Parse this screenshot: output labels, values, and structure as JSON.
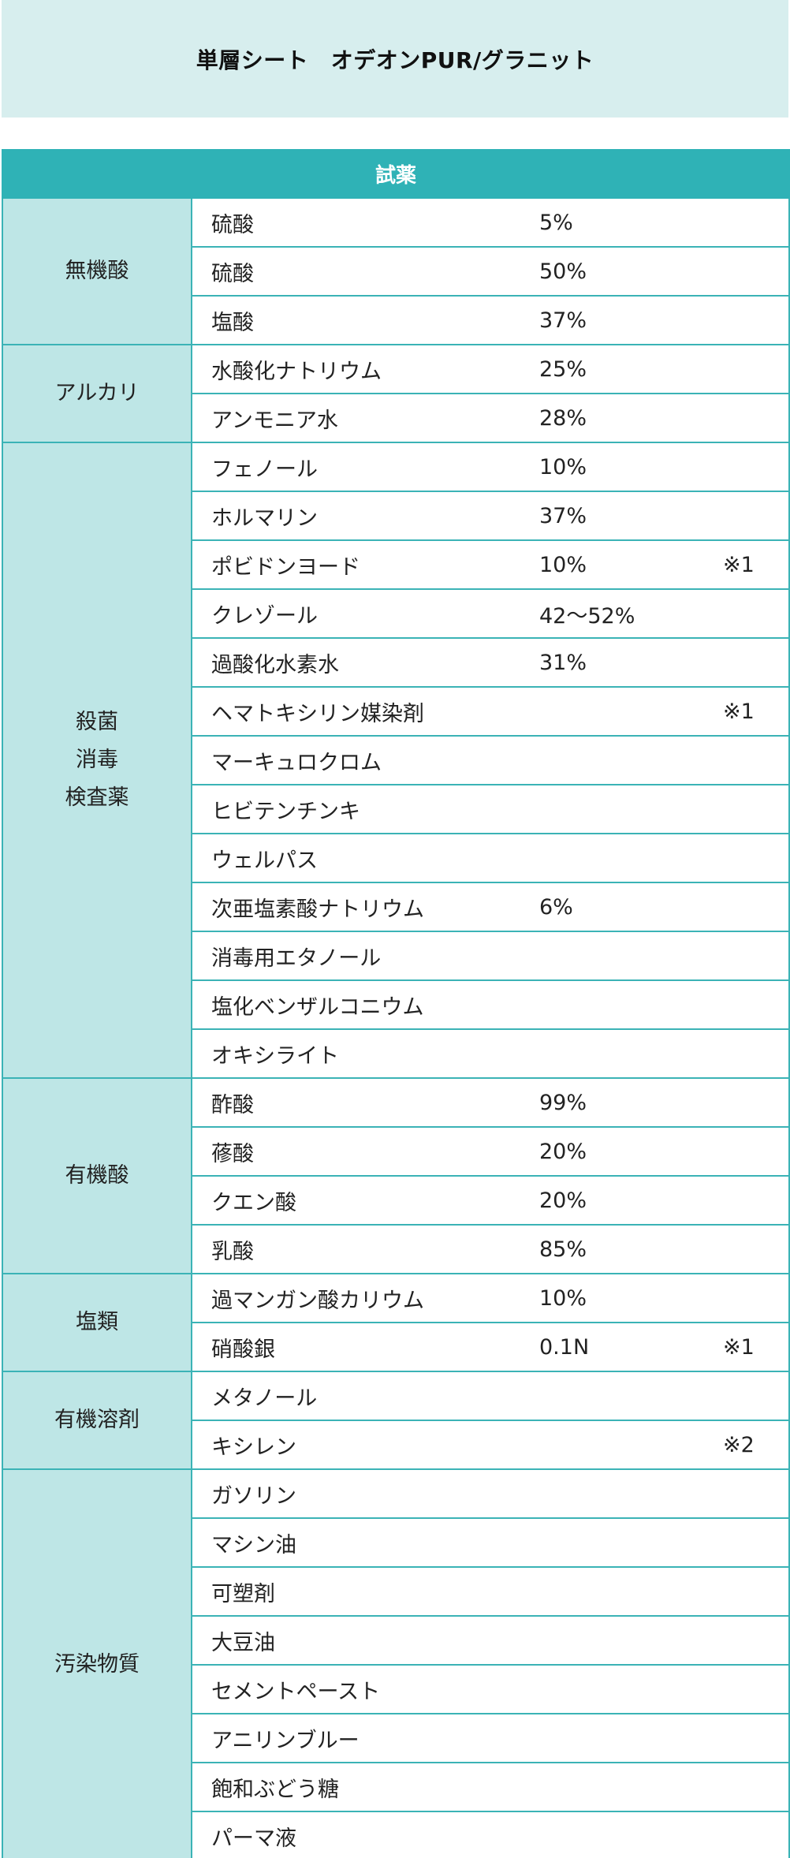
{
  "title": "単層シート　オデオンPUR/グラニット",
  "table_header": "試薬",
  "categories": [
    {
      "lines": [
        "無機酸"
      ],
      "rows": [
        {
          "name": "硫酸",
          "conc": "5%",
          "note": ""
        },
        {
          "name": "硫酸",
          "conc": "50%",
          "note": ""
        },
        {
          "name": "塩酸",
          "conc": "37%",
          "note": ""
        }
      ]
    },
    {
      "lines": [
        "アルカリ"
      ],
      "rows": [
        {
          "name": "水酸化ナトリウム",
          "conc": "25%",
          "note": ""
        },
        {
          "name": "アンモニア水",
          "conc": "28%",
          "note": ""
        }
      ]
    },
    {
      "lines": [
        "殺菌",
        "消毒",
        "検査薬"
      ],
      "rows": [
        {
          "name": "フェノール",
          "conc": "10%",
          "note": ""
        },
        {
          "name": "ホルマリン",
          "conc": "37%",
          "note": ""
        },
        {
          "name": "ポビドンヨード",
          "conc": "10%",
          "note": "※1"
        },
        {
          "name": "クレゾール",
          "conc": "42～52%",
          "note": ""
        },
        {
          "name": "過酸化水素水",
          "conc": "31%",
          "note": ""
        },
        {
          "name": "ヘマトキシリン媒染剤",
          "conc": "",
          "note": "※1"
        },
        {
          "name": "マーキュロクロム",
          "conc": "",
          "note": ""
        },
        {
          "name": "ヒビテンチンキ",
          "conc": "",
          "note": ""
        },
        {
          "name": "ウェルパス",
          "conc": "",
          "note": ""
        },
        {
          "name": "次亜塩素酸ナトリウム",
          "conc": "6%",
          "note": ""
        },
        {
          "name": "消毒用エタノール",
          "conc": "",
          "note": ""
        },
        {
          "name": "塩化ベンザルコニウム",
          "conc": "",
          "note": ""
        },
        {
          "name": "オキシライト",
          "conc": "",
          "note": ""
        }
      ]
    },
    {
      "lines": [
        "有機酸"
      ],
      "rows": [
        {
          "name": "酢酸",
          "conc": "99%",
          "note": ""
        },
        {
          "name": "蓚酸",
          "conc": "20%",
          "note": ""
        },
        {
          "name": "クエン酸",
          "conc": "20%",
          "note": ""
        },
        {
          "name": "乳酸",
          "conc": "85%",
          "note": ""
        }
      ]
    },
    {
      "lines": [
        "塩類"
      ],
      "rows": [
        {
          "name": "過マンガン酸カリウム",
          "conc": "10%",
          "note": ""
        },
        {
          "name": "硝酸銀",
          "conc": "0.1N",
          "note": "※1"
        }
      ]
    },
    {
      "lines": [
        "有機溶剤"
      ],
      "rows": [
        {
          "name": "メタノール",
          "conc": "",
          "note": ""
        },
        {
          "name": "キシレン",
          "conc": "",
          "note": "※2"
        }
      ]
    },
    {
      "lines": [
        "汚染物質"
      ],
      "rows": [
        {
          "name": "ガソリン",
          "conc": "",
          "note": ""
        },
        {
          "name": "マシン油",
          "conc": "",
          "note": ""
        },
        {
          "name": "可塑剤",
          "conc": "",
          "note": ""
        },
        {
          "name": "大豆油",
          "conc": "",
          "note": ""
        },
        {
          "name": "セメントペースト",
          "conc": "",
          "note": ""
        },
        {
          "name": "アニリンブルー",
          "conc": "",
          "note": ""
        },
        {
          "name": "飽和ぶどう糖",
          "conc": "",
          "note": ""
        },
        {
          "name": "パーマ液",
          "conc": "",
          "note": ""
        }
      ]
    }
  ]
}
